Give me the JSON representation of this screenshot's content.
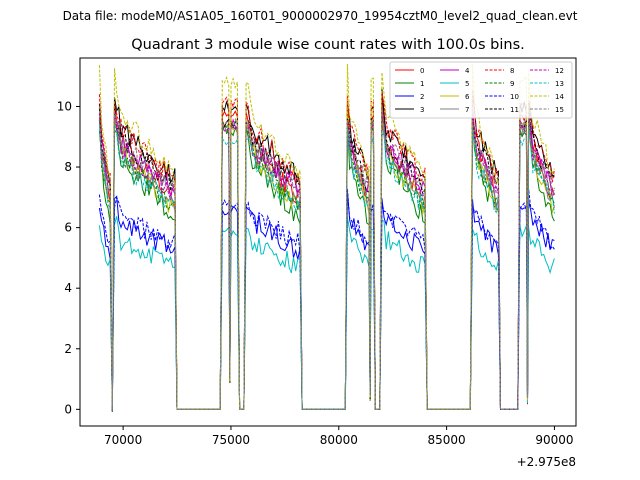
{
  "figure": {
    "suptitle": "Data file: modeM0/AS1A05_160T01_9000002970_19954cztM0_level2_quad_clean.evt"
  },
  "chart_data": {
    "type": "line",
    "title": "Quadrant 3 module wise count rates with 100.0s bins.",
    "xlabel": "",
    "ylabel": "",
    "x_offset_label": "+2.975e8",
    "xlim": [
      68000,
      91000
    ],
    "ylim": [
      -0.55,
      11.6
    ],
    "x_ticks": [
      70000,
      75000,
      80000,
      85000,
      90000
    ],
    "x_tick_labels": [
      "70000",
      "75000",
      "80000",
      "85000",
      "90000"
    ],
    "y_ticks": [
      0,
      2,
      4,
      6,
      8,
      10
    ],
    "y_tick_labels": [
      "0",
      "2",
      "4",
      "6",
      "8",
      "10"
    ],
    "grid": false,
    "legend_position": "top-right",
    "legend_columns": 4,
    "segments": [
      {
        "start": 68900,
        "end": 69400
      },
      {
        "start": 69600,
        "end": 72400
      },
      {
        "start": 74600,
        "end": 74900
      },
      {
        "start": 75000,
        "end": 75300
      },
      {
        "start": 75700,
        "end": 78200
      },
      {
        "start": 80400,
        "end": 81400
      },
      {
        "start": 81500,
        "end": 81600
      },
      {
        "start": 82000,
        "end": 84000
      },
      {
        "start": 86200,
        "end": 87400
      },
      {
        "start": 88400,
        "end": 88700
      },
      {
        "start": 88800,
        "end": 90000
      }
    ],
    "dips": [
      {
        "x": 69500,
        "y": 0.05
      },
      {
        "x": 72500,
        "y": 0
      },
      {
        "x": 74500,
        "y": 0
      },
      {
        "x": 74950,
        "y": 1.0
      },
      {
        "x": 75400,
        "y": 0
      },
      {
        "x": 75600,
        "y": 0
      },
      {
        "x": 78300,
        "y": 0
      },
      {
        "x": 80300,
        "y": 0
      },
      {
        "x": 81450,
        "y": 0.4
      },
      {
        "x": 81700,
        "y": 0
      },
      {
        "x": 81900,
        "y": 0
      },
      {
        "x": 84100,
        "y": 0
      },
      {
        "x": 86100,
        "y": 0
      },
      {
        "x": 87500,
        "y": 0
      },
      {
        "x": 88300,
        "y": 0
      },
      {
        "x": 88750,
        "y": 0.3
      }
    ],
    "series": [
      {
        "name": "0",
        "color": "#ff0000",
        "dashed": false,
        "level": 7.6,
        "peak": 10.0
      },
      {
        "name": "1",
        "color": "#008000",
        "dashed": false,
        "level": 7.0,
        "peak": 9.5
      },
      {
        "name": "2",
        "color": "#0000ff",
        "dashed": false,
        "level": 5.6,
        "peak": 6.9
      },
      {
        "name": "3",
        "color": "#000000",
        "dashed": false,
        "level": 8.2,
        "peak": 10.3
      },
      {
        "name": "4",
        "color": "#bf00bf",
        "dashed": false,
        "level": 7.8,
        "peak": 9.7
      },
      {
        "name": "5",
        "color": "#00bfbf",
        "dashed": false,
        "level": 5.0,
        "peak": 6.2
      },
      {
        "name": "6",
        "color": "#bfbf00",
        "dashed": false,
        "level": 7.3,
        "peak": 9.7
      },
      {
        "name": "7",
        "color": "#808080",
        "dashed": false,
        "level": 7.4,
        "peak": 9.6
      },
      {
        "name": "8",
        "color": "#ff0000",
        "dashed": true,
        "level": 8.2,
        "peak": 10.4
      },
      {
        "name": "9",
        "color": "#008000",
        "dashed": true,
        "level": 7.3,
        "peak": 9.5
      },
      {
        "name": "10",
        "color": "#0000ff",
        "dashed": true,
        "level": 5.8,
        "peak": 7.0
      },
      {
        "name": "11",
        "color": "#000000",
        "dashed": true,
        "level": 7.9,
        "peak": 9.8
      },
      {
        "name": "12",
        "color": "#bf00bf",
        "dashed": true,
        "level": 7.7,
        "peak": 9.6
      },
      {
        "name": "13",
        "color": "#00bfbf",
        "dashed": true,
        "level": 7.2,
        "peak": 9.2
      },
      {
        "name": "14",
        "color": "#bfbf00",
        "dashed": true,
        "level": 8.4,
        "peak": 11.1
      },
      {
        "name": "15",
        "color": "#808080",
        "dashed": true,
        "level": 7.8,
        "peak": 9.7
      }
    ]
  }
}
